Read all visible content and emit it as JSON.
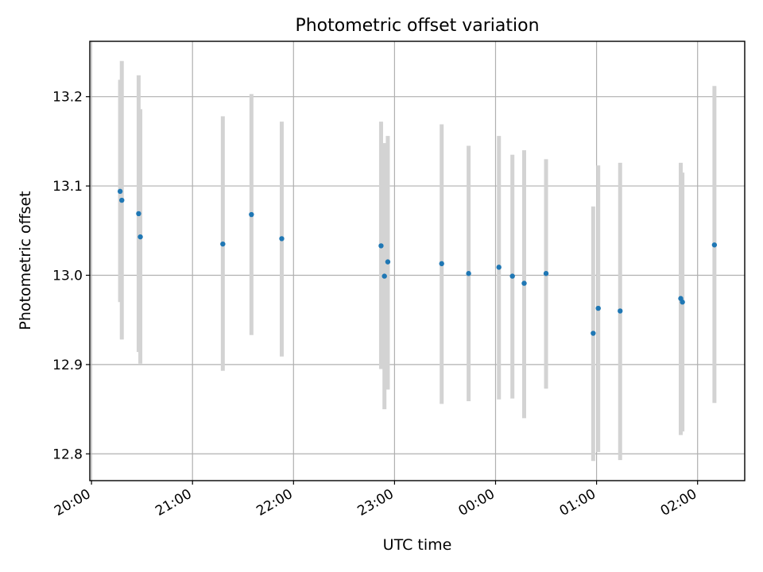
{
  "chart_data": {
    "type": "scatter",
    "title": "Photometric offset variation",
    "xlabel": "UTC time",
    "ylabel": "Photometric offset",
    "x_unit": "time of night",
    "x_tick_labels": [
      "20:00",
      "21:00",
      "22:00",
      "23:00",
      "00:00",
      "01:00",
      "02:00"
    ],
    "y_tick_labels": [
      "12.8",
      "12.9",
      "13.0",
      "13.1",
      "13.2"
    ],
    "y_ticks": [
      12.8,
      12.9,
      13.0,
      13.1,
      13.2
    ],
    "ylim": [
      12.77,
      13.262
    ],
    "xlim": [
      "19:59",
      "02:28"
    ],
    "grid": true,
    "marker_color": "#1f77b4",
    "errorbar_color": "#d3d3d3",
    "points": [
      {
        "time": "20:17",
        "y": 13.094,
        "err_low": 12.97,
        "err_high": 13.219
      },
      {
        "time": "20:18",
        "y": 13.084,
        "err_low": 12.928,
        "err_high": 13.24
      },
      {
        "time": "20:28",
        "y": 13.069,
        "err_low": 12.914,
        "err_high": 13.224
      },
      {
        "time": "20:29",
        "y": 13.043,
        "err_low": 12.901,
        "err_high": 13.186
      },
      {
        "time": "21:18",
        "y": 13.035,
        "err_low": 12.893,
        "err_high": 13.178
      },
      {
        "time": "21:35",
        "y": 13.068,
        "err_low": 12.933,
        "err_high": 13.203
      },
      {
        "time": "21:53",
        "y": 13.041,
        "err_low": 12.909,
        "err_high": 13.172
      },
      {
        "time": "22:52",
        "y": 13.033,
        "err_low": 12.895,
        "err_high": 13.172
      },
      {
        "time": "22:54",
        "y": 12.999,
        "err_low": 12.85,
        "err_high": 13.148
      },
      {
        "time": "22:56",
        "y": 13.015,
        "err_low": 12.872,
        "err_high": 13.156
      },
      {
        "time": "23:28",
        "y": 13.013,
        "err_low": 12.856,
        "err_high": 13.169
      },
      {
        "time": "23:44",
        "y": 13.002,
        "err_low": 12.859,
        "err_high": 13.145
      },
      {
        "time": "00:02",
        "y": 13.009,
        "err_low": 12.861,
        "err_high": 13.156
      },
      {
        "time": "00:10",
        "y": 12.999,
        "err_low": 12.862,
        "err_high": 13.135
      },
      {
        "time": "00:17",
        "y": 12.991,
        "err_low": 12.84,
        "err_high": 13.14
      },
      {
        "time": "00:30",
        "y": 13.002,
        "err_low": 12.873,
        "err_high": 13.13
      },
      {
        "time": "00:58",
        "y": 12.935,
        "err_low": 12.792,
        "err_high": 13.077
      },
      {
        "time": "01:01",
        "y": 12.963,
        "err_low": 12.802,
        "err_high": 13.123
      },
      {
        "time": "01:14",
        "y": 12.96,
        "err_low": 12.793,
        "err_high": 13.126
      },
      {
        "time": "01:50",
        "y": 12.974,
        "err_low": 12.821,
        "err_high": 13.126
      },
      {
        "time": "01:51",
        "y": 12.97,
        "err_low": 12.825,
        "err_high": 13.115
      },
      {
        "time": "02:10",
        "y": 13.034,
        "err_low": 12.857,
        "err_high": 13.212
      }
    ]
  }
}
